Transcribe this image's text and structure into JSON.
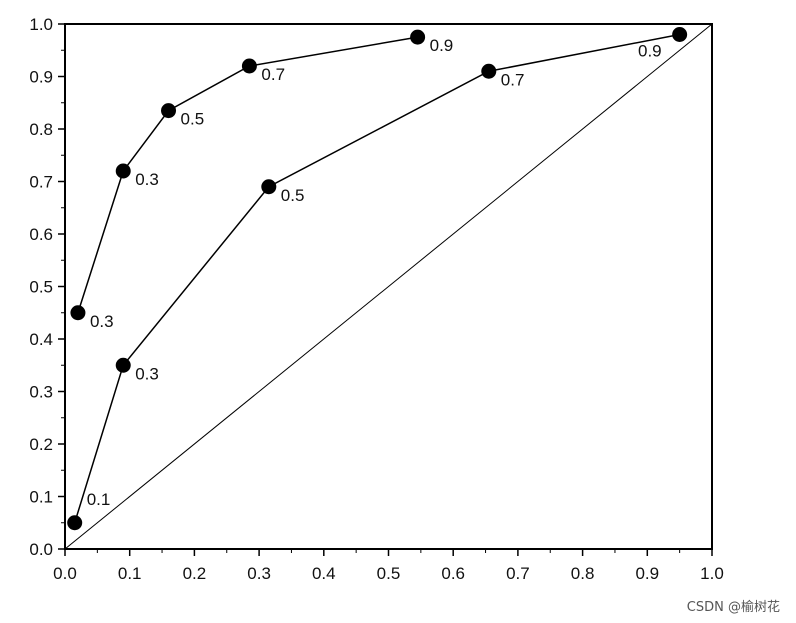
{
  "chart_data": {
    "type": "line",
    "title": "",
    "xlabel": "",
    "ylabel": "",
    "xlim": [
      0,
      1
    ],
    "ylim": [
      0,
      1
    ],
    "x_ticks": [
      "0.0",
      "0.1",
      "0.2",
      "0.3",
      "0.4",
      "0.5",
      "0.6",
      "0.7",
      "0.8",
      "0.9",
      "1.0"
    ],
    "y_ticks": [
      "0.0",
      "0.1",
      "0.2",
      "0.3",
      "0.4",
      "0.5",
      "0.6",
      "0.7",
      "0.8",
      "0.9",
      "1.0"
    ],
    "grid": false,
    "legend": false,
    "diagonal": [
      [
        0,
        0
      ],
      [
        1,
        1
      ]
    ],
    "series": [
      {
        "points": [
          {
            "x": 0.02,
            "y": 0.45,
            "label": "0.3"
          },
          {
            "x": 0.09,
            "y": 0.72,
            "label": "0.3"
          },
          {
            "x": 0.16,
            "y": 0.835,
            "label": "0.5"
          },
          {
            "x": 0.285,
            "y": 0.92,
            "label": "0.7"
          },
          {
            "x": 0.545,
            "y": 0.975,
            "label": "0.9"
          }
        ]
      },
      {
        "points": [
          {
            "x": 0.015,
            "y": 0.05,
            "label": "0.1"
          },
          {
            "x": 0.09,
            "y": 0.35,
            "label": "0.3"
          },
          {
            "x": 0.315,
            "y": 0.69,
            "label": "0.5"
          },
          {
            "x": 0.655,
            "y": 0.91,
            "label": "0.7"
          },
          {
            "x": 0.95,
            "y": 0.98,
            "label": "0.9"
          }
        ]
      }
    ]
  },
  "watermark": "CSDN @榆树花"
}
